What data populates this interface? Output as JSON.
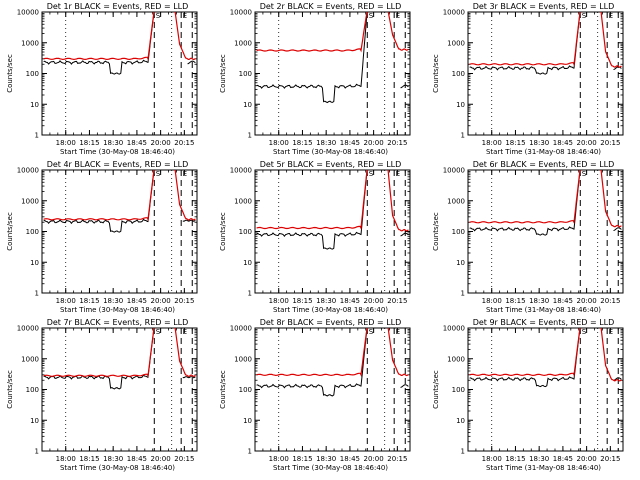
{
  "colors": {
    "events": "#000000",
    "lld": "#dd0000",
    "background": "#ffffff"
  },
  "chart_data": {
    "type": "line",
    "layout": "3x3 grid of log-scale time series panels",
    "y_scale": "log",
    "ylim": [
      1,
      10000
    ],
    "ytick_labels": [
      "1",
      "10",
      "100",
      "1000",
      "10000"
    ],
    "ytick_values": [
      1,
      10,
      100,
      1000,
      10000
    ],
    "xtick_labels": [
      "18:00",
      "18:15",
      "18:30",
      "18:45",
      "20:00",
      "20:15"
    ],
    "xtick_minutes": [
      0,
      15,
      30,
      45,
      60,
      75
    ],
    "xlim_minutes": [
      -15,
      83
    ],
    "ylabel": "Counts/sec",
    "dotted_lines_minutes": [
      0,
      67
    ],
    "dashed_lines_minutes": [
      56,
      73,
      80
    ],
    "marker_labels": [
      {
        "text": "S",
        "minute": 56
      },
      {
        "text": "E",
        "minute": 73
      }
    ],
    "panels": [
      {
        "title": "Det 1r BLACK = Events, RED = LLD",
        "start_label": "Start Time (30-May-08 18:46:40)",
        "black": {
          "base": 230,
          "dip": 100
        },
        "red": {
          "base": 300,
          "peak": 12000,
          "post": 300
        },
        "gap": 1
      },
      {
        "title": "Det 2r BLACK = Events, RED = LLD",
        "start_label": "Start Time (30-May-08 18:46:40)",
        "black": {
          "base": 38,
          "dip": 12
        },
        "red": {
          "base": 560,
          "peak": 12000,
          "post": 600
        },
        "gap": 1
      },
      {
        "title": "Det 3r BLACK = Events, RED = LLD",
        "start_label": "Start Time (31-May-08 18:46:40)",
        "black": {
          "base": 150,
          "dip": 100
        },
        "red": {
          "base": 200,
          "peak": 12000,
          "post": 170
        },
        "gap": 1
      },
      {
        "title": "Det 4r BLACK = Events, RED = LLD",
        "start_label": "Start Time (30-May-08 18:46:40)",
        "black": {
          "base": 210,
          "dip": 100
        },
        "red": {
          "base": 250,
          "peak": 12000,
          "post": 250
        },
        "gap": 0
      },
      {
        "title": "Det 5r BLACK = Events, RED = LLD",
        "start_label": "Start Time (30-May-08 18:46:40)",
        "black": {
          "base": 80,
          "dip": 28
        },
        "red": {
          "base": 130,
          "peak": 12000,
          "post": 110
        },
        "gap": 1
      },
      {
        "title": "Det 6r BLACK = Events, RED = LLD",
        "start_label": "Start Time (31-May-08 18:46:40)",
        "black": {
          "base": 120,
          "dip": 80
        },
        "red": {
          "base": 200,
          "peak": 12000,
          "post": 150
        },
        "gap": 1
      },
      {
        "title": "Det 7r BLACK = Events, RED = LLD",
        "start_label": "Start Time (30-May-08 18:46:40)",
        "black": {
          "base": 250,
          "dip": 110
        },
        "red": {
          "base": 280,
          "peak": 12000,
          "post": 280
        },
        "gap": 0
      },
      {
        "title": "Det 8r BLACK = Events, RED = LLD",
        "start_label": "Start Time (30-May-08 18:46:40)",
        "black": {
          "base": 130,
          "dip": 65
        },
        "red": {
          "base": 300,
          "peak": 12000,
          "post": 300
        },
        "gap": 1
      },
      {
        "title": "Det 9r BLACK = Events, RED = LLD",
        "start_label": "Start Time (31-May-08 18:46:40)",
        "black": {
          "base": 220,
          "dip": 130
        },
        "red": {
          "base": 300,
          "peak": 12000,
          "post": 200
        },
        "gap": 1
      }
    ]
  }
}
